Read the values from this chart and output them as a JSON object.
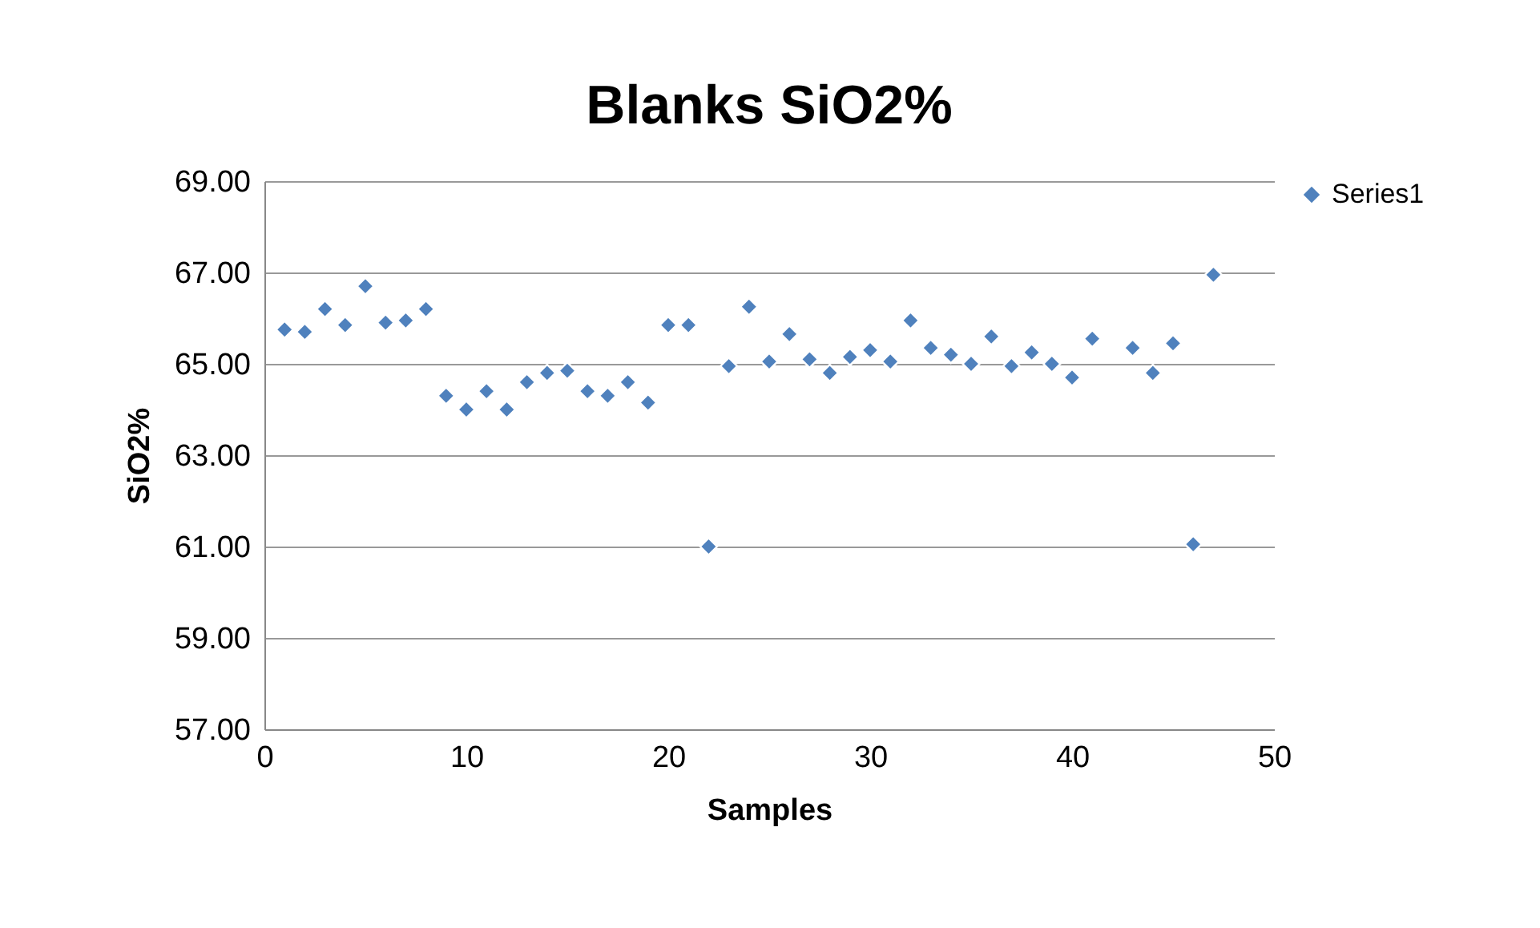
{
  "chart_data": {
    "type": "scatter",
    "title": "Blanks SiO2%",
    "xlabel": "Samples",
    "ylabel": "SiO2%",
    "x": [
      1,
      2,
      3,
      4,
      5,
      6,
      7,
      8,
      9,
      10,
      11,
      12,
      13,
      14,
      15,
      16,
      17,
      18,
      19,
      20,
      21,
      22,
      23,
      24,
      25,
      26,
      27,
      28,
      29,
      30,
      31,
      32,
      33,
      34,
      35,
      36,
      37,
      38,
      39,
      40,
      41,
      43,
      44,
      45,
      46,
      47
    ],
    "series": [
      {
        "name": "Series1",
        "color": "#4f81bd",
        "values": [
          65.75,
          65.7,
          66.2,
          65.85,
          66.7,
          65.9,
          65.95,
          66.2,
          64.3,
          64.0,
          64.4,
          64.0,
          64.6,
          64.8,
          64.85,
          64.4,
          64.3,
          64.6,
          64.15,
          65.85,
          65.85,
          61.0,
          64.95,
          66.25,
          65.05,
          65.65,
          65.1,
          64.8,
          65.15,
          65.3,
          65.05,
          65.95,
          65.35,
          65.2,
          65.0,
          65.6,
          64.95,
          65.25,
          65.0,
          64.7,
          65.55,
          65.35,
          64.8,
          65.45,
          61.05,
          66.95
        ]
      }
    ],
    "xlim": [
      0,
      50
    ],
    "xticks": [
      0,
      10,
      20,
      30,
      40,
      50
    ],
    "ylim": [
      57,
      69
    ],
    "yticks": [
      {
        "value": 57,
        "label": "57.00"
      },
      {
        "value": 59,
        "label": "59.00"
      },
      {
        "value": 61,
        "label": "61.00"
      },
      {
        "value": 63,
        "label": "63.00"
      },
      {
        "value": 65,
        "label": "65.00"
      },
      {
        "value": 67,
        "label": "67.00"
      },
      {
        "value": 69,
        "label": "69.00"
      }
    ],
    "grid": "y",
    "legend": "right",
    "marker": "diamond"
  }
}
